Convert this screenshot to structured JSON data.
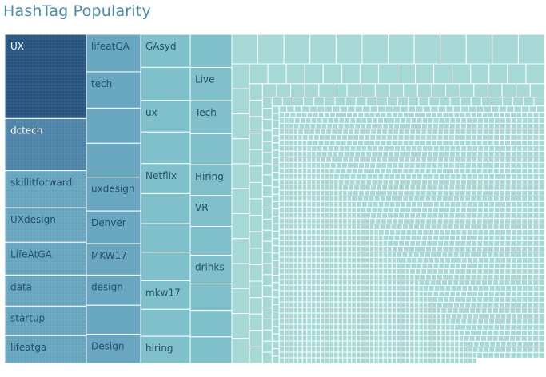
{
  "title": "HashTag Popularity",
  "chart_data": {
    "type": "treemap",
    "title": "HashTag Popularity",
    "colors": {
      "top": "#2a5782",
      "second": "#4f86aa",
      "mid": "#69a7c0",
      "teal": "#7fc0cb",
      "pale": "#a6d9d5",
      "border": "#ffffff",
      "label_dark": "#24506a",
      "label_light": "#ffffff"
    },
    "labeled_tags": [
      {
        "name": "UX",
        "value": 100
      },
      {
        "name": "dctech",
        "value": 62
      },
      {
        "name": "skillitforward",
        "value": 44
      },
      {
        "name": "UXdesign",
        "value": 41
      },
      {
        "name": "LifeAtGA",
        "value": 39
      },
      {
        "name": "data",
        "value": 37
      },
      {
        "name": "startup",
        "value": 35
      },
      {
        "name": "lifeatga",
        "value": 33
      },
      {
        "name": "lifeatGA",
        "value": 31
      },
      {
        "name": "tech",
        "value": 30
      },
      {
        "name": "uxdesign",
        "value": 28
      },
      {
        "name": "Denver",
        "value": 27
      },
      {
        "name": "MKW17",
        "value": 26
      },
      {
        "name": "design",
        "value": 25
      },
      {
        "name": "Design",
        "value": 24
      },
      {
        "name": "GAsyd",
        "value": 22
      },
      {
        "name": "ux",
        "value": 21
      },
      {
        "name": "Netflix",
        "value": 20
      },
      {
        "name": "mkw17",
        "value": 19
      },
      {
        "name": "hiring",
        "value": 18
      },
      {
        "name": "Live",
        "value": 15
      },
      {
        "name": "Tech",
        "value": 15
      },
      {
        "name": "Hiring",
        "value": 14
      },
      {
        "name": "VR",
        "value": 14
      },
      {
        "name": "drinks",
        "value": 13
      }
    ]
  }
}
